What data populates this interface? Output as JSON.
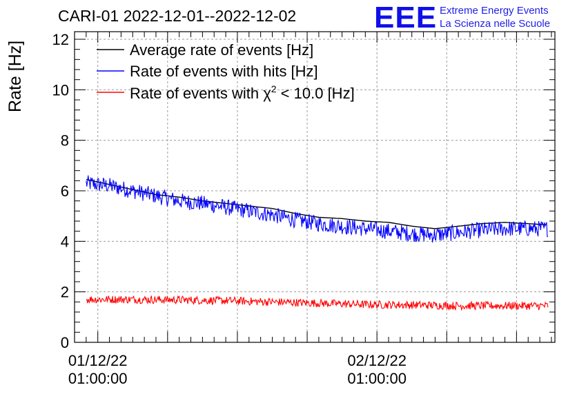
{
  "chart_data": {
    "type": "line",
    "title": "CARI-01 2022-12-01--2022-12-02",
    "xlabel": "",
    "ylabel": "Rate [Hz]",
    "ylim": [
      0,
      12.3
    ],
    "yticks": [
      0,
      2,
      4,
      6,
      8,
      10,
      12
    ],
    "grid": true,
    "legend_position": "top-left",
    "x_unit": "hours since 2022-12-01 00:00:00",
    "xlim": [
      -1.0,
      40.3
    ],
    "xticks": [
      {
        "value": 1.0,
        "date": "01/12/22",
        "time": "01:00:00"
      },
      {
        "value": 25.0,
        "date": "02/12/22",
        "time": "01:00:00"
      }
    ],
    "series": [
      {
        "name": "Average rate of events [Hz]",
        "color": "#000000",
        "x": [
          0,
          2,
          4,
          6,
          8,
          10,
          12,
          14,
          16,
          18,
          20,
          22,
          24,
          26,
          28,
          30,
          32,
          34,
          36,
          38,
          39.7
        ],
        "y": [
          6.45,
          6.25,
          6.05,
          5.85,
          5.75,
          5.6,
          5.5,
          5.4,
          5.3,
          5.1,
          4.95,
          4.9,
          4.8,
          4.75,
          4.6,
          4.5,
          4.6,
          4.7,
          4.75,
          4.7,
          4.65
        ]
      },
      {
        "name": "Rate of events with hits [Hz]",
        "color": "#0000ff",
        "x": [
          0,
          2,
          4,
          6,
          8,
          10,
          12,
          14,
          16,
          18,
          20,
          22,
          24,
          26,
          28,
          30,
          32,
          34,
          36,
          38,
          39.7
        ],
        "y": [
          6.3,
          6.2,
          6.0,
          5.8,
          5.6,
          5.5,
          5.35,
          5.2,
          5.05,
          4.85,
          4.7,
          4.6,
          4.5,
          4.4,
          4.3,
          4.25,
          4.35,
          4.45,
          4.5,
          4.5,
          4.5
        ]
      },
      {
        "name": "Rate of events with χ² < 10.0 [Hz]",
        "color": "#ff0000",
        "x": [
          0,
          4,
          8,
          12,
          16,
          20,
          24,
          28,
          32,
          36,
          39.7
        ],
        "y": [
          1.7,
          1.7,
          1.68,
          1.65,
          1.6,
          1.55,
          1.5,
          1.48,
          1.45,
          1.45,
          1.45
        ]
      }
    ]
  },
  "legend": {
    "avg_label": "Average rate of events [Hz]",
    "hits_label": "Rate of events with hits [Hz]",
    "chi_prefix": "Rate of events with χ",
    "chi_sup": "2",
    "chi_suffix": " < 10.0 [Hz]"
  },
  "logo": {
    "mark": "EEE",
    "line1": "Extreme Energy Events",
    "line2": "La Scienza nelle Scuole",
    "color": "#1010e8"
  }
}
